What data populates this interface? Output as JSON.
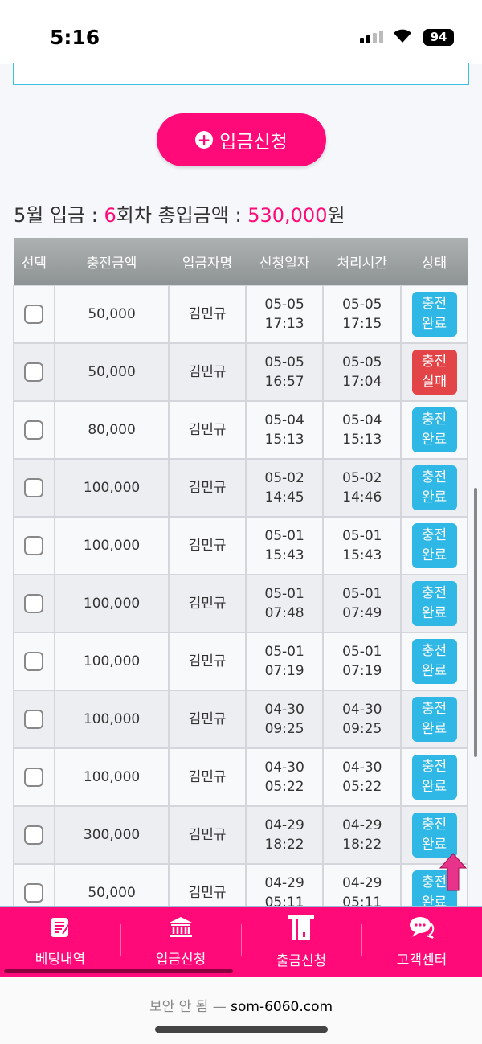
{
  "status_bar": {
    "time": "5:16",
    "battery": "94"
  },
  "deposit_button": {
    "label": "입금신청",
    "icon": "plus-circle-icon"
  },
  "summary": {
    "month_label": "5월 입금 : ",
    "count": "6",
    "count_suffix": "회차 총입금액 : ",
    "total": "530,000",
    "total_suffix": "원"
  },
  "table": {
    "headers": [
      "선택",
      "충전금액",
      "입금자명",
      "신청일자",
      "처리시간",
      "상태"
    ],
    "rows": [
      {
        "amount": "50,000",
        "name": "김민규",
        "req_date": "05-05",
        "req_time": "17:13",
        "proc_date": "05-05",
        "proc_time": "17:15",
        "status1": "충전",
        "status2": "완료",
        "status_type": "ok"
      },
      {
        "amount": "50,000",
        "name": "김민규",
        "req_date": "05-05",
        "req_time": "16:57",
        "proc_date": "05-05",
        "proc_time": "17:04",
        "status1": "충전",
        "status2": "실패",
        "status_type": "fail"
      },
      {
        "amount": "80,000",
        "name": "김민규",
        "req_date": "05-04",
        "req_time": "15:13",
        "proc_date": "05-04",
        "proc_time": "15:13",
        "status1": "충전",
        "status2": "완료",
        "status_type": "ok"
      },
      {
        "amount": "100,000",
        "name": "김민규",
        "req_date": "05-02",
        "req_time": "14:45",
        "proc_date": "05-02",
        "proc_time": "14:46",
        "status1": "충전",
        "status2": "완료",
        "status_type": "ok"
      },
      {
        "amount": "100,000",
        "name": "김민규",
        "req_date": "05-01",
        "req_time": "15:43",
        "proc_date": "05-01",
        "proc_time": "15:43",
        "status1": "충전",
        "status2": "완료",
        "status_type": "ok"
      },
      {
        "amount": "100,000",
        "name": "김민규",
        "req_date": "05-01",
        "req_time": "07:48",
        "proc_date": "05-01",
        "proc_time": "07:49",
        "status1": "충전",
        "status2": "완료",
        "status_type": "ok"
      },
      {
        "amount": "100,000",
        "name": "김민규",
        "req_date": "05-01",
        "req_time": "07:19",
        "proc_date": "05-01",
        "proc_time": "07:19",
        "status1": "충전",
        "status2": "완료",
        "status_type": "ok"
      },
      {
        "amount": "100,000",
        "name": "김민규",
        "req_date": "04-30",
        "req_time": "09:25",
        "proc_date": "04-30",
        "proc_time": "09:25",
        "status1": "충전",
        "status2": "완료",
        "status_type": "ok"
      },
      {
        "amount": "100,000",
        "name": "김민규",
        "req_date": "04-30",
        "req_time": "05:22",
        "proc_date": "04-30",
        "proc_time": "05:22",
        "status1": "충전",
        "status2": "완료",
        "status_type": "ok"
      },
      {
        "amount": "300,000",
        "name": "김민규",
        "req_date": "04-29",
        "req_time": "18:22",
        "proc_date": "04-29",
        "proc_time": "18:22",
        "status1": "충전",
        "status2": "완료",
        "status_type": "ok"
      },
      {
        "amount": "50,000",
        "name": "김민규",
        "req_date": "04-29",
        "req_time": "05:11",
        "proc_date": "04-29",
        "proc_time": "05:11",
        "status1": "충전",
        "status2": "완료",
        "status_type": "ok"
      }
    ]
  },
  "bottom_nav": [
    {
      "label": "베팅내역",
      "icon": "notepad-icon"
    },
    {
      "label": "입금신청",
      "icon": "bank-icon"
    },
    {
      "label": "출금신청",
      "icon": "atm-card-icon"
    },
    {
      "label": "고객센터",
      "icon": "chat-bubbles-icon"
    }
  ],
  "browser": {
    "security": "보안 안 됨 —",
    "url": "som-6060.com"
  },
  "colors": {
    "accent": "#ff0a78",
    "ok": "#2fb7e6",
    "fail": "#e34447"
  }
}
